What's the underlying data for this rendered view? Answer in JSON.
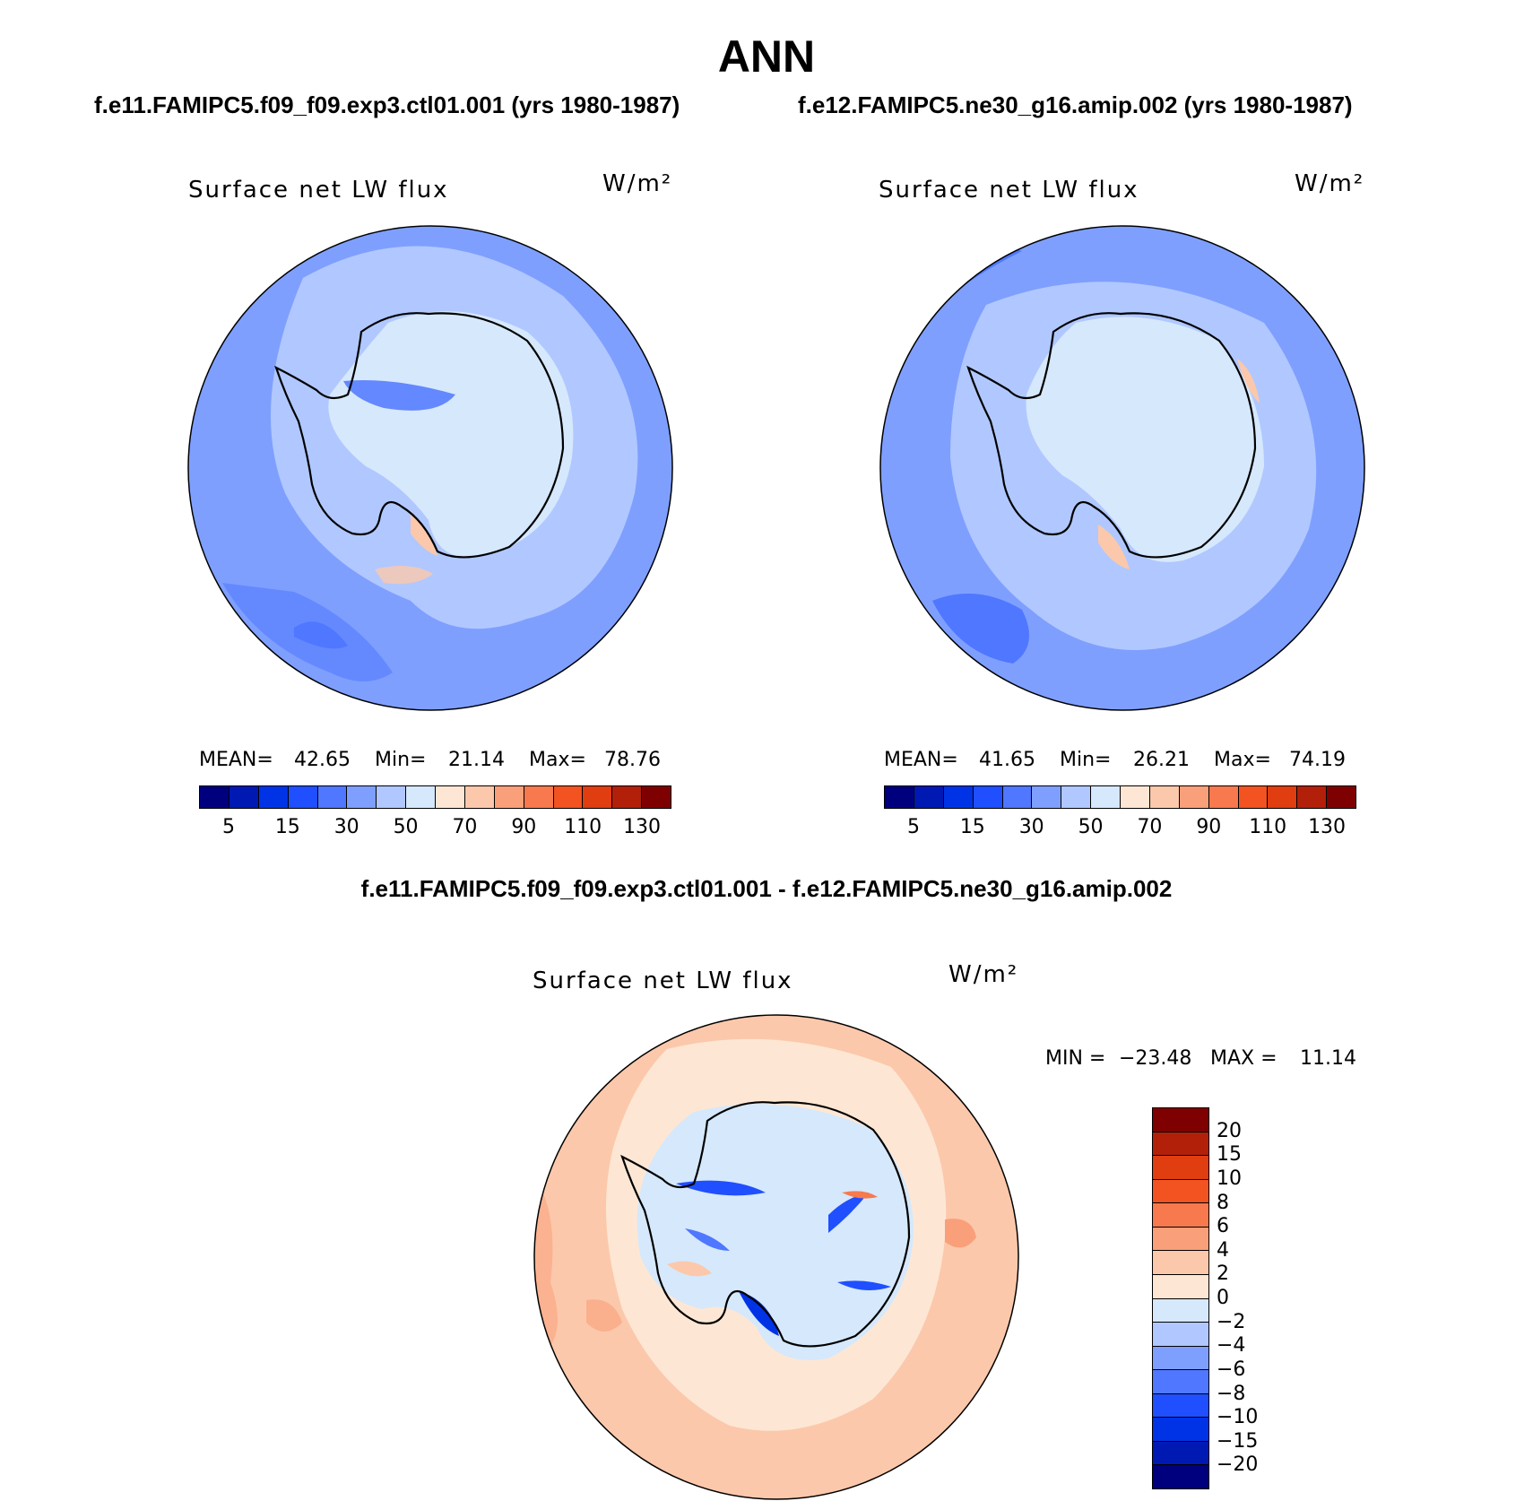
{
  "title": "ANN",
  "case1_title": "f.e11.FAMIPC5.f09_f09.exp3.ctl01.001 (yrs 1980-1987)",
  "case2_title": "f.e12.FAMIPC5.ne30_g16.amip.002 (yrs 1980-1987)",
  "diff_title": "f.e11.FAMIPC5.f09_f09.exp3.ctl01.001 - f.e12.FAMIPC5.ne30_g16.amip.002",
  "variable": "Surface net LW flux",
  "units": "W/m²",
  "panels": [
    {
      "stats": {
        "mean_label": "MEAN=",
        "mean": "42.65",
        "min_label": "Min=",
        "min": "21.14",
        "max_label": "Max=",
        "max": "78.76"
      }
    },
    {
      "stats": {
        "mean_label": "MEAN=",
        "mean": "41.65",
        "min_label": "Min=",
        "min": "26.21",
        "max_label": "Max=",
        "max": "74.19"
      }
    }
  ],
  "diff_stats": {
    "min_label": "MIN =",
    "min": "−23.48",
    "max_label": "MAX =",
    "max": "11.14"
  },
  "abs_colorbar": {
    "colors": [
      "#00007f",
      "#0019b3",
      "#0033e6",
      "#1f4fff",
      "#4f77ff",
      "#7f9fff",
      "#b0c8ff",
      "#d6e8fb",
      "#fde7d4",
      "#fcc8ab",
      "#f9a07a",
      "#f7794d",
      "#f25320",
      "#e03d10",
      "#b3200a",
      "#7f0000"
    ],
    "tick_labels": [
      "5",
      "15",
      "30",
      "50",
      "70",
      "90",
      "110",
      "130"
    ]
  },
  "diff_colorbar": {
    "colors": [
      "#7f0000",
      "#b3200a",
      "#e03d10",
      "#f25320",
      "#f7794d",
      "#f9a07a",
      "#fcc8ab",
      "#fde7d4",
      "#d6e8fb",
      "#b0c8ff",
      "#7f9fff",
      "#4f77ff",
      "#1f4fff",
      "#0033e6",
      "#0019b3",
      "#00007f"
    ],
    "tick_labels": [
      "20",
      "15",
      "10",
      "8",
      "6",
      "4",
      "2",
      "0",
      "−2",
      "−4",
      "−6",
      "−8",
      "−10",
      "−15",
      "−20"
    ]
  }
}
